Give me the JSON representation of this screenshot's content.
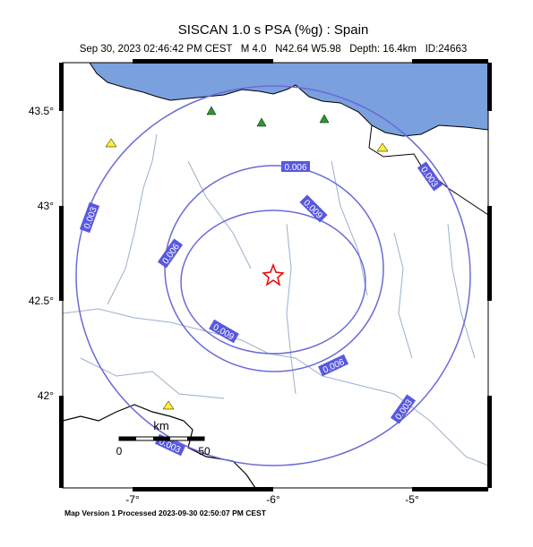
{
  "header": {
    "title": "SISCAN 1.0 s PSA (%g) : Spain",
    "subtitle": "Sep 30, 2023 02:46:42 PM CEST   M 4.0   N42.64 W5.98   Depth: 16.4km   ID:24663"
  },
  "lat_labels": [
    "43.5°",
    "43°",
    "42.5°",
    "42°"
  ],
  "lon_labels": [
    "-7°",
    "-6°",
    "-5°"
  ],
  "contour_labels": [
    "0.003",
    "0.003",
    "0.003",
    "0.003",
    "0.006",
    "0.006",
    "0.006",
    "0.009",
    "0.009"
  ],
  "scale_bar": {
    "unit": "km",
    "start": "0",
    "end": "50"
  },
  "footer": "Map Version 1 Processed 2023-09-30 02:50:07 PM CEST"
}
